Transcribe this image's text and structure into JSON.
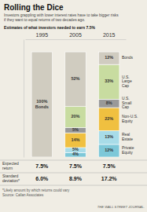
{
  "chart_data": {
    "type": "bar",
    "stacked": true,
    "data_labels": true,
    "tick_labels": "x",
    "title": "Rolling the Dice",
    "subtitle": "Investors grappling with lower interest rates have to take bigger risks\nif they want to equal returns of two decades ago.",
    "subheader": "Estimates of what investors needed to earn 7.5%",
    "categories": [
      "1995",
      "2005",
      "2015"
    ],
    "ylim": [
      0,
      112
    ],
    "series": [
      {
        "name": "Private\nEquity",
        "color": "#7ec8d8",
        "values": [
          0,
          4,
          12
        ],
        "value_labels": [
          null,
          "4%",
          "12%"
        ]
      },
      {
        "name": "Real\nEstate",
        "color": "#a8dce8",
        "values": [
          0,
          5,
          13
        ],
        "value_labels": [
          null,
          "5%",
          "13%"
        ]
      },
      {
        "name": "Non-U.S.\nEquity",
        "color": "#f0c040",
        "values": [
          0,
          14,
          22
        ],
        "value_labels": [
          null,
          "14%",
          "22%"
        ]
      },
      {
        "name": "U.S.\nSmall\nCap",
        "color": "#999999",
        "values": [
          0,
          5,
          8
        ],
        "value_labels": [
          null,
          "5%",
          "8%"
        ]
      },
      {
        "name": "U.S.\nLarge\nCap",
        "color": "#c8dca0",
        "values": [
          0,
          20,
          33
        ],
        "value_labels": [
          null,
          "20%",
          "33%"
        ]
      },
      {
        "name": "Bonds",
        "color": "#d0ccc0",
        "values": [
          100,
          52,
          12
        ],
        "value_labels": [
          "100%\nBonds",
          "52%",
          "12%"
        ]
      }
    ],
    "table": [
      {
        "label": "Expected\nreturn",
        "values": [
          "7.5%",
          "7.5%",
          "7.5%"
        ]
      },
      {
        "label": "Standard\ndeviation*",
        "values": [
          "6.0%",
          "8.9%",
          "17.2%"
        ]
      }
    ],
    "footnote": "*Likely amount by which returns could vary\nSource: Callan Associates",
    "credit": "THE WALL STREET JOURNAL."
  }
}
